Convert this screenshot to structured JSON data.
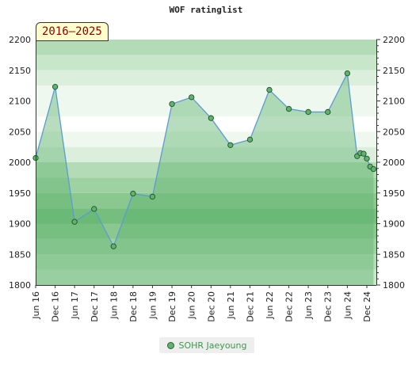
{
  "chart_data": {
    "type": "area",
    "title": "WOF ratinglist",
    "period_label": "2016–2025",
    "ylim": [
      1800,
      2200
    ],
    "yticks": [
      1800,
      1850,
      1900,
      1950,
      2000,
      2050,
      2100,
      2150,
      2200
    ],
    "xlim": [
      "2016-06-01",
      "2025-02-28"
    ],
    "xticks": [
      {
        "date": "2016-06-01",
        "label": "Jun 16"
      },
      {
        "date": "2016-12-01",
        "label": "Dec 16"
      },
      {
        "date": "2017-06-01",
        "label": "Jun 17"
      },
      {
        "date": "2017-12-01",
        "label": "Dec 17"
      },
      {
        "date": "2018-06-01",
        "label": "Jun 18"
      },
      {
        "date": "2018-12-01",
        "label": "Dec 18"
      },
      {
        "date": "2019-06-01",
        "label": "Jun 19"
      },
      {
        "date": "2019-12-01",
        "label": "Dec 19"
      },
      {
        "date": "2020-06-01",
        "label": "Jun 20"
      },
      {
        "date": "2020-12-01",
        "label": "Dec 20"
      },
      {
        "date": "2021-06-01",
        "label": "Jun 21"
      },
      {
        "date": "2021-12-01",
        "label": "Dec 21"
      },
      {
        "date": "2022-06-01",
        "label": "Jun 22"
      },
      {
        "date": "2022-12-01",
        "label": "Dec 22"
      },
      {
        "date": "2023-06-01",
        "label": "Jun 23"
      },
      {
        "date": "2023-12-01",
        "label": "Dec 23"
      },
      {
        "date": "2024-06-01",
        "label": "Jun 24"
      },
      {
        "date": "2024-12-01",
        "label": "Dec 24"
      }
    ],
    "series": [
      {
        "name": "SOHR Jaeyoung",
        "color": "#5fb36f",
        "line_color": "#5b9bd5",
        "points": [
          {
            "x": "2016-06-01",
            "y": 2007
          },
          {
            "x": "2016-12-01",
            "y": 2123
          },
          {
            "x": "2017-06-01",
            "y": 1903
          },
          {
            "x": "2017-12-01",
            "y": 1924
          },
          {
            "x": "2018-06-01",
            "y": 1863
          },
          {
            "x": "2018-12-01",
            "y": 1949
          },
          {
            "x": "2019-06-01",
            "y": 1944
          },
          {
            "x": "2019-12-01",
            "y": 2095
          },
          {
            "x": "2020-06-01",
            "y": 2106
          },
          {
            "x": "2020-12-01",
            "y": 2072
          },
          {
            "x": "2021-06-01",
            "y": 2028
          },
          {
            "x": "2021-12-01",
            "y": 2037
          },
          {
            "x": "2022-06-01",
            "y": 2118
          },
          {
            "x": "2022-12-01",
            "y": 2087
          },
          {
            "x": "2023-06-01",
            "y": 2082
          },
          {
            "x": "2023-12-01",
            "y": 2082
          },
          {
            "x": "2024-06-01",
            "y": 2145
          },
          {
            "x": "2024-09-01",
            "y": 2010
          },
          {
            "x": "2024-10-01",
            "y": 2015
          },
          {
            "x": "2024-11-01",
            "y": 2014
          },
          {
            "x": "2024-12-01",
            "y": 2006
          },
          {
            "x": "2025-01-01",
            "y": 1993
          },
          {
            "x": "2025-02-01",
            "y": 1989
          }
        ]
      }
    ],
    "band_colors": [
      "#ffffff",
      "#eef8ee",
      "#dcefdc",
      "#c8e6c9",
      "#b3dcb6",
      "#9fd2a3",
      "#8ac890",
      "#76be7e"
    ],
    "grid": true,
    "legend_position": "bottom"
  }
}
